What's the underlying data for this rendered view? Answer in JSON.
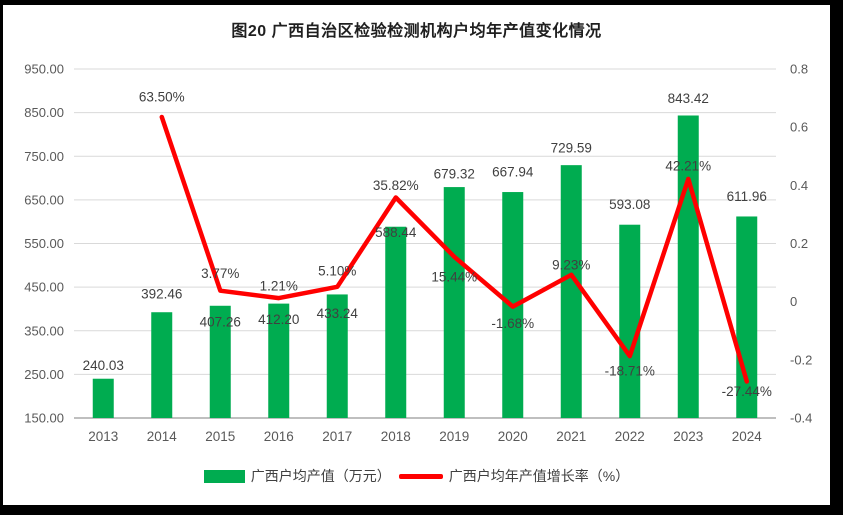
{
  "frame": {
    "background": "#000000"
  },
  "chart_data": {
    "type": "bar+line",
    "title": "图20 广西自治区检验检测机构户均年产值变化情况",
    "categories": [
      "2013",
      "2014",
      "2015",
      "2016",
      "2017",
      "2018",
      "2019",
      "2020",
      "2021",
      "2022",
      "2023",
      "2024"
    ],
    "series": [
      {
        "name": "广西户均产值（万元）",
        "type": "bar",
        "axis": "left",
        "color": "#00AC50",
        "values": [
          240.03,
          392.46,
          407.26,
          412.2,
          433.24,
          588.44,
          679.32,
          667.94,
          729.59,
          593.08,
          843.42,
          611.96
        ],
        "labels": [
          "240.03",
          "392.46",
          "407.26",
          "412.20",
          "433.24",
          "588.44",
          "679.32",
          "667.94",
          "729.59",
          "593.08",
          "843.42",
          "611.96"
        ]
      },
      {
        "name": "广西户均年产值增长率（%）",
        "type": "line",
        "axis": "right",
        "color": "#FF0000",
        "values": [
          null,
          0.635,
          0.0377,
          0.0121,
          0.051,
          0.3582,
          0.1544,
          -0.0168,
          0.0923,
          -0.1871,
          0.4221,
          -0.2744
        ],
        "labels": [
          "",
          "63.50%",
          "3.77%",
          "1.21%",
          "5.10%",
          "35.82%",
          "15.44%",
          "-1.68%",
          "9.23%",
          "-18.71%",
          "42.21%",
          "-27.44%"
        ]
      }
    ],
    "left_axis": {
      "min": 150,
      "max": 950,
      "ticks": [
        "950.00",
        "850.00",
        "750.00",
        "650.00",
        "550.00",
        "450.00",
        "350.00",
        "250.00",
        "150.00"
      ]
    },
    "right_axis": {
      "min": -0.4,
      "max": 0.8,
      "ticks": [
        "0.8",
        "0.6",
        "0.4",
        "0.2",
        "0",
        "-0.2",
        "-0.4"
      ]
    },
    "grid": true,
    "legend_position": "bottom",
    "colors": {
      "background": "#FFFFFF",
      "grid": "#D9D9D9",
      "axis_line": "#BFBFBF",
      "tick_text": "#595959",
      "label_text": "#404040",
      "title_text": "#1F1F1F"
    }
  }
}
